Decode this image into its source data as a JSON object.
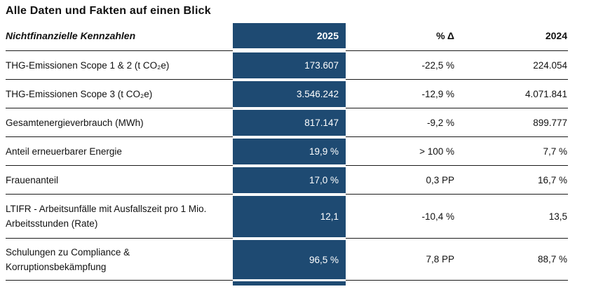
{
  "page_title": "Alle Daten und Fakten auf einen Blick",
  "colors": {
    "highlight_column_blue": "#1e4a72",
    "separator_line": "#1a1a1a",
    "highlight_text": "#ffffff",
    "body_text": "#111111"
  },
  "table": {
    "header": {
      "label": "Nichtfinanzielle Kennzahlen",
      "col_2025": "2025",
      "col_delta": "% Δ",
      "col_2024": "2024"
    },
    "rows": [
      {
        "label": "THG-Emissionen Scope 1 & 2 (t CO₂e)",
        "v2025": "173.607",
        "delta": "-22,5 %",
        "v2024": "224.054"
      },
      {
        "label": "THG-Emissionen Scope 3 (t CO₂e)",
        "v2025": "3.546.242",
        "delta": "-12,9 %",
        "v2024": "4.071.841"
      },
      {
        "label": "Gesamtenergieverbrauch (MWh)",
        "v2025": "817.147",
        "delta": "-9,2 %",
        "v2024": "899.777"
      },
      {
        "label": "Anteil erneuerbarer Energie",
        "v2025": "19,9 %",
        "delta": "> 100 %",
        "v2024": "7,7 %"
      },
      {
        "label": "Frauenanteil",
        "v2025": "17,0 %",
        "delta": "0,3 PP",
        "v2024": "16,7 %"
      },
      {
        "label": "LTIFR - Arbeitsunfälle mit Ausfallszeit pro 1 Mio. Arbeitsstunden (Rate)",
        "v2025": "12,1",
        "delta": "-10,4 %",
        "v2024": "13,5"
      },
      {
        "label": "Schulungen zu Compliance & Korruptionsbekämpfung",
        "v2025": "96,5 %",
        "delta": "7,8 PP",
        "v2024": "88,7 %"
      }
    ]
  }
}
